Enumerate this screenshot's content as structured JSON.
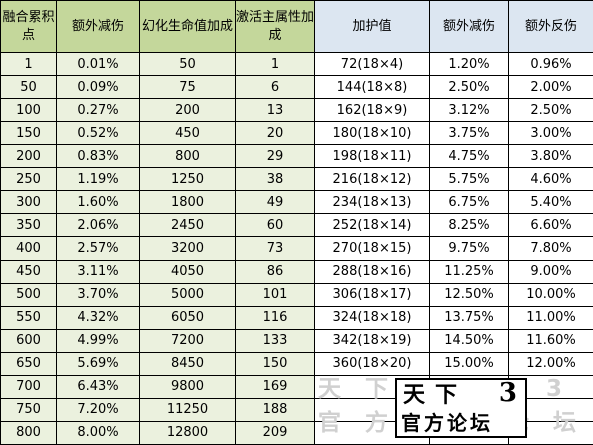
{
  "headers": [
    "融合累积点",
    "额外减伤",
    "幻化生命值加成",
    "激活主属性加成",
    "加护值",
    "额外减伤",
    "额外反伤"
  ],
  "rows": [
    [
      "1",
      "0.01%",
      "50",
      "1",
      "72(18×4)",
      "1.20%",
      "0.96%"
    ],
    [
      "50",
      "0.09%",
      "75",
      "6",
      "144(18×8)",
      "2.50%",
      "2.00%"
    ],
    [
      "100",
      "0.27%",
      "200",
      "13",
      "162(18×9)",
      "3.12%",
      "2.50%"
    ],
    [
      "150",
      "0.52%",
      "450",
      "20",
      "180(18×10)",
      "3.75%",
      "3.00%"
    ],
    [
      "200",
      "0.83%",
      "800",
      "29",
      "198(18×11)",
      "4.75%",
      "3.80%"
    ],
    [
      "250",
      "1.19%",
      "1250",
      "38",
      "216(18×12)",
      "5.75%",
      "4.60%"
    ],
    [
      "300",
      "1.60%",
      "1800",
      "49",
      "234(18×13)",
      "6.75%",
      "5.40%"
    ],
    [
      "350",
      "2.06%",
      "2450",
      "60",
      "252(18×14)",
      "8.25%",
      "6.60%"
    ],
    [
      "400",
      "2.57%",
      "3200",
      "73",
      "270(18×15)",
      "9.75%",
      "7.80%"
    ],
    [
      "450",
      "3.11%",
      "4050",
      "86",
      "288(18×16)",
      "11.25%",
      "9.00%"
    ],
    [
      "500",
      "3.70%",
      "5000",
      "101",
      "306(18×17)",
      "12.50%",
      "10.00%"
    ],
    [
      "550",
      "4.32%",
      "6050",
      "116",
      "324(18×18)",
      "13.75%",
      "11.00%"
    ],
    [
      "600",
      "4.99%",
      "7200",
      "133",
      "342(18×19)",
      "14.50%",
      "11.60%"
    ],
    [
      "650",
      "5.69%",
      "8450",
      "150",
      "360(18×20)",
      "15.00%",
      "12.00%"
    ],
    [
      "700",
      "6.43%",
      "9800",
      "169",
      "",
      "",
      ""
    ],
    [
      "750",
      "7.20%",
      "11250",
      "188",
      "",
      "",
      ""
    ],
    [
      "800",
      "8.00%",
      "12800",
      "209",
      "",
      "",
      ""
    ]
  ],
  "watermark": {
    "line1": "天下",
    "num": "3",
    "line2": "官方论坛",
    "faint_line1": "天 下 3 天 下 3",
    "faint_line2": "官 方 论 坛 论 坛"
  }
}
